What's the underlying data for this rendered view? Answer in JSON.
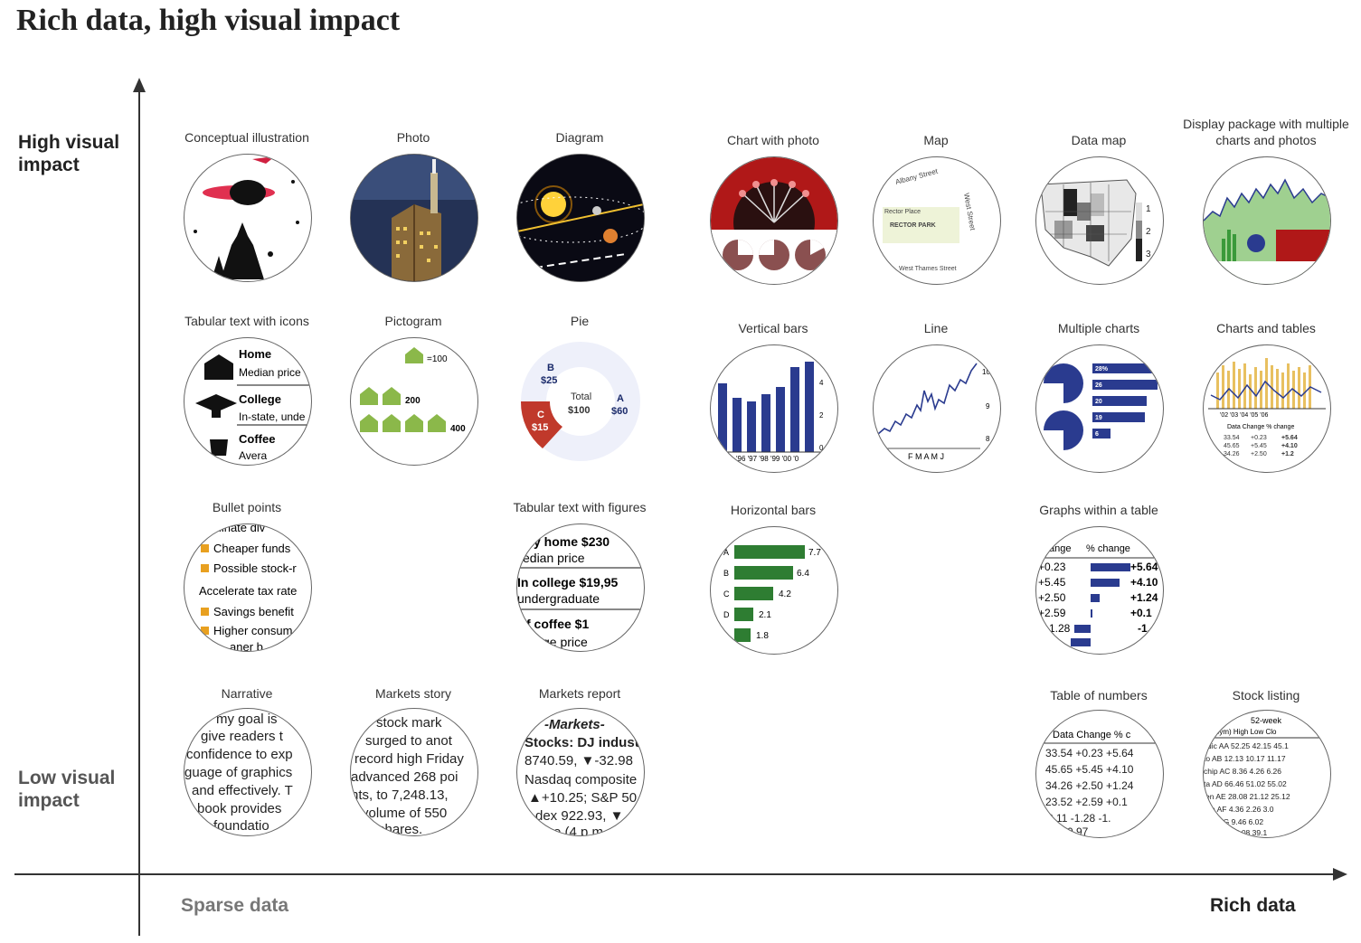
{
  "title": "Rich data, high visual impact",
  "axes": {
    "y_high": "High visual impact",
    "y_low": "Low visual impact",
    "x_low": "Sparse data",
    "x_high": "Rich data"
  },
  "items": {
    "conceptual_illustration": "Conceptual illustration",
    "photo": "Photo",
    "diagram": "Diagram",
    "chart_with_photo": "Chart with photo",
    "map": "Map",
    "data_map": "Data map",
    "display_package": "Display package with multiple charts and photos",
    "tabular_text_icons": "Tabular text with icons",
    "pictogram": "Pictogram",
    "pie": "Pie",
    "vertical_bars": "Vertical bars",
    "line": "Line",
    "multiple_charts": "Multiple charts",
    "charts_and_tables": "Charts and tables",
    "bullet_points": "Bullet points",
    "tabular_text_figures": "Tabular text with figures",
    "horizontal_bars": "Horizontal bars",
    "graphs_within_table": "Graphs within a table",
    "narrative": "Narrative",
    "markets_story": "Markets story",
    "markets_report": "Markets report",
    "table_of_numbers": "Table of numbers",
    "stock_listing": "Stock listing"
  },
  "content": {
    "map": {
      "street1": "Albany Street",
      "street2": "Rector Place",
      "park": "RECTOR PARK",
      "street3": "West Street",
      "street4": "West Thames Street"
    },
    "data_map_legend": [
      "1",
      "2",
      "3"
    ],
    "tabular_icons": {
      "r1": "Home",
      "r1b": "Median price",
      "r2": "College",
      "r2b": "In-state, unde",
      "r3": "Coffee",
      "r3b": "Avera"
    },
    "pictogram": {
      "v1": "=100",
      "v2": "200",
      "v3": "400"
    },
    "pie": {
      "b": "B",
      "b_val": "$25",
      "total": "Total",
      "total_val": "$100",
      "a": "A",
      "a_val": "$60",
      "c": "C",
      "c_val": "$15"
    },
    "vertical_bars_x": "'96 '97 '98 '99 '00 '0",
    "vertical_bars_y": [
      "4",
      "2",
      "0"
    ],
    "line_x": "F M A M J",
    "line_y": [
      "10",
      "9",
      "8"
    ],
    "multiple_charts_bars": [
      "28%",
      "26",
      "20",
      "19",
      "6"
    ],
    "charts_tables": {
      "years": "'02 '03 '04 '05 '06",
      "head": "Data  Change  % change"
    },
    "bullets": [
      "minate div",
      "Cheaper funds",
      "Possible stock-r",
      "Accelerate tax rate",
      "Savings benefit",
      "Higher consum",
      "aner b"
    ],
    "tabular_figures": [
      "y home  $230",
      "edian price",
      "In college  $19,95",
      "undergraduate",
      "f coffee  $1",
      "ge price"
    ],
    "hbars": {
      "labels": [
        "A",
        "B",
        "C",
        "D",
        ""
      ],
      "values": [
        "7.7",
        "6.4",
        "4.2",
        "2.1",
        "1.8"
      ]
    },
    "graphs_table": {
      "head1": "ange",
      "head2": "% change",
      "left": [
        "+0.23",
        "+5.45",
        "+2.50",
        "+2.59",
        "-1.28"
      ],
      "right": [
        "+5.64",
        "+4.10",
        "+1.24",
        "+0.1",
        "-1."
      ]
    },
    "narrative": [
      "my goal is",
      "give readers t",
      "confidence to exp",
      "guage of graphics",
      "and effectively. T",
      "book provides",
      "foundatio"
    ],
    "markets_story": [
      "stock mark",
      "surged to anot",
      "record high Friday",
      "advanced 268 poi",
      "nts, to 7,248.13,",
      "volume of 550",
      "shares."
    ],
    "markets_report": [
      "-Markets-",
      "Stocks: DJ industri",
      "8740.59, ▼-32.98",
      "Nasdaq composite",
      "▲+10.25; S&P 50",
      "dex 922.93, ▼",
      "e (4 p m"
    ],
    "table_numbers": {
      "head": "Data  Change  % c",
      "rows": [
        "33.54  +0.23  +5.64",
        "45.65  +5.45  +4.10",
        "34.26  +2.50  +1.24",
        "23.52  +2.59  +0.1",
        "2.11  -1.28  -1.",
        "  -0.97"
      ]
    },
    "stock_listing": {
      "head1": "52-week",
      "head2": "Sym) High  Low  Clo",
      "rows": [
        "dic AA 52.25  42.15 45.1",
        "to AB  12.13  10.17 11.17",
        "chip AC  8.36  4.26  6.26",
        "ta AD  66.46  51.02 55.02",
        "en AE  28.08  21.12 25.12",
        "n AF  4.36  2.26  3.0",
        "AG  9.46  6.02",
        "14.08  39.1"
      ]
    }
  },
  "colors": {
    "navy": "#2a3b8f",
    "green": "#2e7d32",
    "green_light": "#8bb84a",
    "red": "#c0392b",
    "orange": "#e8a020"
  }
}
